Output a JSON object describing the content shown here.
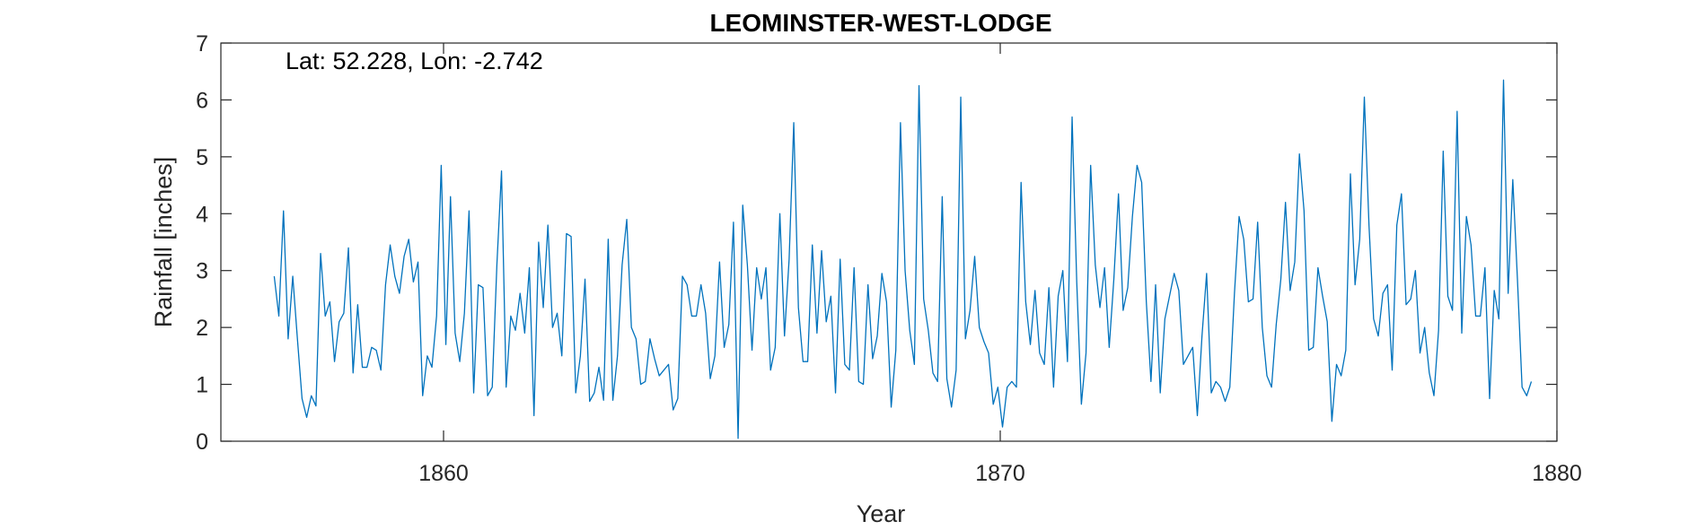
{
  "chart_data": {
    "type": "line",
    "title": "LEOMINSTER-WEST-LODGE",
    "annotation": "Lat: 52.228, Lon: -2.742",
    "xlabel": "Year",
    "ylabel": "Rainfall [inches]",
    "xlim": [
      1856,
      1880
    ],
    "ylim": [
      0,
      7
    ],
    "xticks": [
      1860,
      1870,
      1880
    ],
    "yticks": [
      0,
      1,
      2,
      3,
      4,
      5,
      6,
      7
    ],
    "grid": false,
    "series": [
      {
        "color": "#0072bd",
        "x_start": 1856.958,
        "x_step": 0.08333,
        "values": [
          2.9,
          2.2,
          4.05,
          1.8,
          2.9,
          1.8,
          0.75,
          0.42,
          0.8,
          0.62,
          3.3,
          2.2,
          2.45,
          1.4,
          2.1,
          2.25,
          3.4,
          1.2,
          2.4,
          1.3,
          1.3,
          1.65,
          1.6,
          1.25,
          2.75,
          3.45,
          2.9,
          2.6,
          3.25,
          3.55,
          2.8,
          3.15,
          0.8,
          1.5,
          1.3,
          2.2,
          4.85,
          1.7,
          4.3,
          1.9,
          1.4,
          2.25,
          4.05,
          0.85,
          2.75,
          2.7,
          0.8,
          0.95,
          3.1,
          4.75,
          0.95,
          2.2,
          1.95,
          2.6,
          1.9,
          3.05,
          0.45,
          3.5,
          2.35,
          3.8,
          2.0,
          2.25,
          1.5,
          3.65,
          3.6,
          0.85,
          1.5,
          2.85,
          0.7,
          0.85,
          1.3,
          0.72,
          3.55,
          0.72,
          1.5,
          3.1,
          3.9,
          2.0,
          1.8,
          1.0,
          1.05,
          1.8,
          1.45,
          1.15,
          1.25,
          1.35,
          0.55,
          0.75,
          2.9,
          2.75,
          2.2,
          2.2,
          2.75,
          2.25,
          1.1,
          1.5,
          3.15,
          1.65,
          2.05,
          3.85,
          0.05,
          4.15,
          3.1,
          1.6,
          3.05,
          2.5,
          3.05,
          1.25,
          1.65,
          4.0,
          1.85,
          3.2,
          5.6,
          2.35,
          1.4,
          1.4,
          3.45,
          1.9,
          3.35,
          2.1,
          2.55,
          0.85,
          3.2,
          1.35,
          1.25,
          3.05,
          1.05,
          1.0,
          2.75,
          1.45,
          1.85,
          2.95,
          2.45,
          0.6,
          1.6,
          5.6,
          3.0,
          1.95,
          1.35,
          6.25,
          2.5,
          1.95,
          1.2,
          1.05,
          4.3,
          1.1,
          0.6,
          1.25,
          6.05,
          1.8,
          2.3,
          3.25,
          2.0,
          1.75,
          1.55,
          0.65,
          0.95,
          0.25,
          0.95,
          1.05,
          0.95,
          4.55,
          2.45,
          1.7,
          2.65,
          1.55,
          1.35,
          2.7,
          0.95,
          2.55,
          3.0,
          1.4,
          5.7,
          2.8,
          0.65,
          1.55,
          4.85,
          3.1,
          2.35,
          3.05,
          1.65,
          2.85,
          4.35,
          2.3,
          2.7,
          3.95,
          4.85,
          4.55,
          2.45,
          1.05,
          2.75,
          0.85,
          2.15,
          2.55,
          2.95,
          2.65,
          1.35,
          1.5,
          1.65,
          0.45,
          1.85,
          2.95,
          0.85,
          1.05,
          0.95,
          0.7,
          0.95,
          2.6,
          3.95,
          3.55,
          2.45,
          2.5,
          3.85,
          2.0,
          1.15,
          0.95,
          2.05,
          2.85,
          4.2,
          2.65,
          3.15,
          5.05,
          4.05,
          1.6,
          1.65,
          3.05,
          2.55,
          2.1,
          0.35,
          1.35,
          1.15,
          1.6,
          4.7,
          2.75,
          3.55,
          6.05,
          3.8,
          2.15,
          1.85,
          2.6,
          2.75,
          1.25,
          3.8,
          4.35,
          2.4,
          2.5,
          3.0,
          1.55,
          2.0,
          1.2,
          0.8,
          1.95,
          5.1,
          2.55,
          2.3,
          5.8,
          1.9,
          3.95,
          3.45,
          2.2,
          2.2,
          3.05,
          0.75,
          2.65,
          2.15,
          6.35,
          2.6,
          4.6,
          2.85,
          0.95,
          0.8,
          1.05
        ]
      }
    ]
  }
}
